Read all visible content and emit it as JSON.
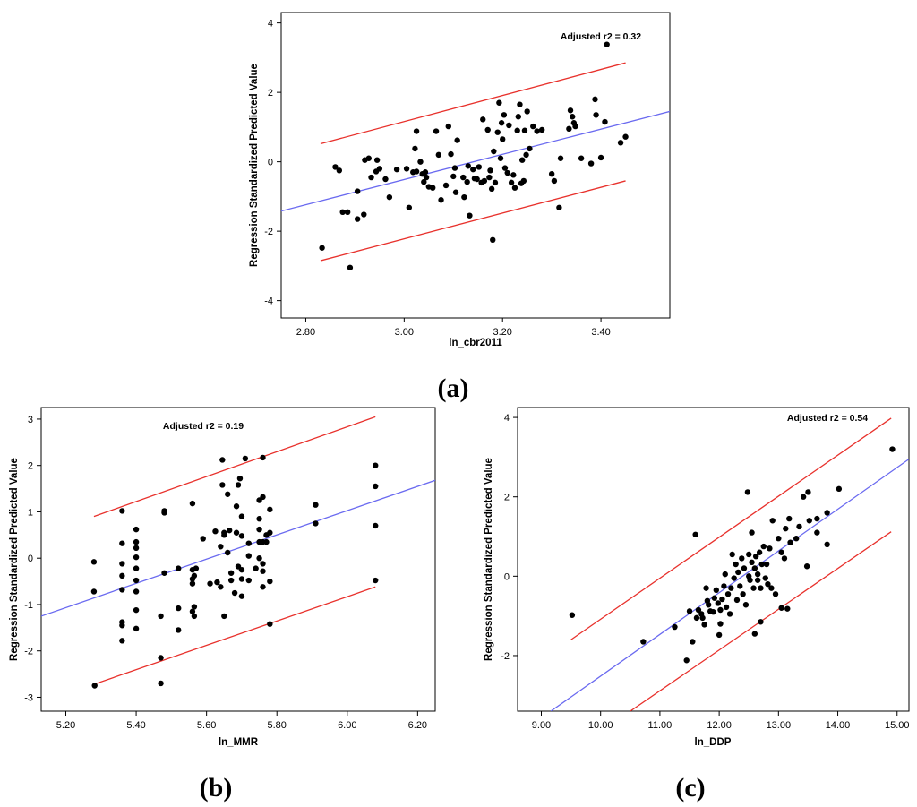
{
  "chart_data": [
    {
      "id": "a",
      "type": "scatter",
      "panel_label": "(a)",
      "xlabel": "ln_cbr2011",
      "ylabel": "Regression Standardized Predicted Value",
      "annotation": "Adjusted r2 = 0.32",
      "xlim": [
        2.75,
        3.54
      ],
      "ylim": [
        -4.5,
        4.3
      ],
      "xticks": [
        2.8,
        3.0,
        3.2,
        3.4
      ],
      "xtick_labels": [
        "2.80",
        "3.00",
        "3.20",
        "3.40"
      ],
      "yticks": [
        -4,
        -2,
        0,
        2,
        4
      ],
      "ytick_labels": [
        "-4",
        "-2",
        "0",
        "2",
        "4"
      ],
      "fit_line": {
        "x": [
          2.75,
          3.54
        ],
        "y": [
          -1.42,
          1.45
        ],
        "color": "#6a6af0"
      },
      "upper_band": {
        "x": [
          2.83,
          3.45
        ],
        "y": [
          0.52,
          2.85
        ],
        "color": "#e8312c"
      },
      "lower_band": {
        "x": [
          2.83,
          3.45
        ],
        "y": [
          -2.85,
          -0.55
        ],
        "color": "#e8312c"
      },
      "points": [
        [
          2.833,
          -2.48
        ],
        [
          2.86,
          -0.15
        ],
        [
          2.868,
          -0.25
        ],
        [
          2.875,
          -1.45
        ],
        [
          2.885,
          -1.45
        ],
        [
          2.89,
          -3.05
        ],
        [
          2.905,
          -0.85
        ],
        [
          2.905,
          -1.65
        ],
        [
          2.918,
          -1.52
        ],
        [
          2.92,
          0.05
        ],
        [
          2.928,
          0.1
        ],
        [
          2.933,
          -0.45
        ],
        [
          2.943,
          -0.28
        ],
        [
          2.945,
          0.05
        ],
        [
          2.95,
          -0.2
        ],
        [
          2.962,
          -0.5
        ],
        [
          2.97,
          -1.02
        ],
        [
          2.985,
          -0.22
        ],
        [
          3.005,
          -0.2
        ],
        [
          3.01,
          -1.32
        ],
        [
          3.018,
          -0.3
        ],
        [
          3.022,
          0.38
        ],
        [
          3.025,
          0.88
        ],
        [
          3.025,
          -0.28
        ],
        [
          3.033,
          0.0
        ],
        [
          3.037,
          -0.35
        ],
        [
          3.04,
          -0.58
        ],
        [
          3.043,
          -0.3
        ],
        [
          3.045,
          -0.45
        ],
        [
          3.05,
          -0.72
        ],
        [
          3.058,
          -0.75
        ],
        [
          3.065,
          0.88
        ],
        [
          3.07,
          0.2
        ],
        [
          3.075,
          -1.1
        ],
        [
          3.085,
          -0.68
        ],
        [
          3.09,
          1.02
        ],
        [
          3.095,
          0.22
        ],
        [
          3.1,
          -0.42
        ],
        [
          3.103,
          -0.18
        ],
        [
          3.105,
          -0.88
        ],
        [
          3.108,
          0.62
        ],
        [
          3.12,
          -0.45
        ],
        [
          3.122,
          -1.02
        ],
        [
          3.128,
          -0.58
        ],
        [
          3.13,
          -0.12
        ],
        [
          3.133,
          -1.55
        ],
        [
          3.14,
          -0.22
        ],
        [
          3.143,
          -0.48
        ],
        [
          3.148,
          -0.5
        ],
        [
          3.152,
          -0.15
        ],
        [
          3.157,
          -0.6
        ],
        [
          3.16,
          1.22
        ],
        [
          3.163,
          -0.55
        ],
        [
          3.17,
          0.92
        ],
        [
          3.173,
          -0.45
        ],
        [
          3.175,
          -0.25
        ],
        [
          3.178,
          -0.78
        ],
        [
          3.18,
          -2.25
        ],
        [
          3.182,
          0.3
        ],
        [
          3.185,
          -0.6
        ],
        [
          3.19,
          0.85
        ],
        [
          3.193,
          1.7
        ],
        [
          3.196,
          0.1
        ],
        [
          3.198,
          1.12
        ],
        [
          3.2,
          0.65
        ],
        [
          3.203,
          1.35
        ],
        [
          3.205,
          -0.18
        ],
        [
          3.21,
          -0.32
        ],
        [
          3.213,
          1.05
        ],
        [
          3.218,
          -0.6
        ],
        [
          3.222,
          -0.38
        ],
        [
          3.225,
          -0.75
        ],
        [
          3.23,
          0.9
        ],
        [
          3.232,
          1.3
        ],
        [
          3.235,
          1.65
        ],
        [
          3.238,
          -0.62
        ],
        [
          3.24,
          0.05
        ],
        [
          3.243,
          -0.55
        ],
        [
          3.245,
          0.9
        ],
        [
          3.248,
          0.2
        ],
        [
          3.25,
          1.45
        ],
        [
          3.255,
          0.38
        ],
        [
          3.262,
          1.02
        ],
        [
          3.27,
          0.88
        ],
        [
          3.28,
          0.92
        ],
        [
          3.3,
          -0.35
        ],
        [
          3.305,
          -0.55
        ],
        [
          3.315,
          -1.32
        ],
        [
          3.318,
          0.1
        ],
        [
          3.335,
          0.95
        ],
        [
          3.338,
          1.48
        ],
        [
          3.342,
          1.3
        ],
        [
          3.345,
          1.12
        ],
        [
          3.348,
          1.02
        ],
        [
          3.36,
          0.1
        ],
        [
          3.38,
          -0.05
        ],
        [
          3.388,
          1.8
        ],
        [
          3.39,
          1.35
        ],
        [
          3.4,
          0.12
        ],
        [
          3.408,
          1.15
        ],
        [
          3.412,
          3.38
        ],
        [
          3.44,
          0.55
        ],
        [
          3.45,
          0.72
        ]
      ]
    },
    {
      "id": "b",
      "type": "scatter",
      "panel_label": "(b)",
      "xlabel": "ln_MMR",
      "ylabel": "Regression Standardized Predicted Value",
      "annotation": "Adjusted r2 = 0.19",
      "xlim": [
        5.13,
        6.25
      ],
      "ylim": [
        -3.3,
        3.25
      ],
      "xticks": [
        5.2,
        5.4,
        5.6,
        5.8,
        6.0,
        6.2
      ],
      "xtick_labels": [
        "5.20",
        "5.40",
        "5.60",
        "5.80",
        "6.00",
        "6.20"
      ],
      "yticks": [
        -3,
        -2,
        -1,
        0,
        1,
        2,
        3
      ],
      "ytick_labels": [
        "-3",
        "-2",
        "-1",
        "0",
        "1",
        "2",
        "3"
      ],
      "fit_line": {
        "x": [
          5.13,
          6.25
        ],
        "y": [
          -1.25,
          1.68
        ],
        "color": "#6a6af0"
      },
      "upper_band": {
        "x": [
          5.28,
          6.08
        ],
        "y": [
          0.9,
          3.05
        ],
        "color": "#e8312c"
      },
      "lower_band": {
        "x": [
          5.28,
          6.08
        ],
        "y": [
          -2.72,
          -0.62
        ],
        "color": "#e8312c"
      },
      "points": [
        [
          5.28,
          -0.08
        ],
        [
          5.28,
          -0.72
        ],
        [
          5.282,
          -2.75
        ],
        [
          5.36,
          1.02
        ],
        [
          5.36,
          0.32
        ],
        [
          5.36,
          -0.12
        ],
        [
          5.36,
          -0.38
        ],
        [
          5.36,
          -0.68
        ],
        [
          5.36,
          -1.38
        ],
        [
          5.36,
          -1.45
        ],
        [
          5.36,
          -1.78
        ],
        [
          5.4,
          0.62
        ],
        [
          5.4,
          0.35
        ],
        [
          5.4,
          0.22
        ],
        [
          5.4,
          0.02
        ],
        [
          5.4,
          -0.22
        ],
        [
          5.4,
          -0.48
        ],
        [
          5.4,
          -0.72
        ],
        [
          5.4,
          -1.12
        ],
        [
          5.4,
          -1.52
        ],
        [
          5.47,
          -2.15
        ],
        [
          5.47,
          -2.7
        ],
        [
          5.47,
          -1.25
        ],
        [
          5.48,
          1.02
        ],
        [
          5.48,
          0.98
        ],
        [
          5.48,
          -0.32
        ],
        [
          5.52,
          -0.22
        ],
        [
          5.52,
          -1.08
        ],
        [
          5.52,
          -1.55
        ],
        [
          5.56,
          1.18
        ],
        [
          5.56,
          -0.25
        ],
        [
          5.56,
          -0.45
        ],
        [
          5.56,
          -0.55
        ],
        [
          5.56,
          -1.15
        ],
        [
          5.565,
          -1.25
        ],
        [
          5.565,
          -1.05
        ],
        [
          5.565,
          -0.38
        ],
        [
          5.57,
          -0.22
        ],
        [
          5.59,
          0.42
        ],
        [
          5.61,
          -0.55
        ],
        [
          5.625,
          0.58
        ],
        [
          5.63,
          -0.52
        ],
        [
          5.64,
          0.25
        ],
        [
          5.64,
          -0.62
        ],
        [
          5.645,
          2.12
        ],
        [
          5.645,
          1.58
        ],
        [
          5.65,
          0.55
        ],
        [
          5.65,
          0.5
        ],
        [
          5.65,
          -1.25
        ],
        [
          5.66,
          1.38
        ],
        [
          5.66,
          0.12
        ],
        [
          5.665,
          0.6
        ],
        [
          5.67,
          -0.32
        ],
        [
          5.67,
          -0.48
        ],
        [
          5.68,
          -0.75
        ],
        [
          5.685,
          1.12
        ],
        [
          5.685,
          0.55
        ],
        [
          5.69,
          1.58
        ],
        [
          5.69,
          -0.18
        ],
        [
          5.695,
          1.72
        ],
        [
          5.7,
          0.9
        ],
        [
          5.7,
          0.48
        ],
        [
          5.7,
          -0.25
        ],
        [
          5.7,
          -0.45
        ],
        [
          5.7,
          -0.82
        ],
        [
          5.71,
          2.15
        ],
        [
          5.72,
          0.32
        ],
        [
          5.72,
          0.05
        ],
        [
          5.72,
          -0.48
        ],
        [
          5.74,
          -0.22
        ],
        [
          5.75,
          1.25
        ],
        [
          5.75,
          0.85
        ],
        [
          5.75,
          0.62
        ],
        [
          5.75,
          0.35
        ],
        [
          5.75,
          0.0
        ],
        [
          5.76,
          2.17
        ],
        [
          5.76,
          1.32
        ],
        [
          5.76,
          0.35
        ],
        [
          5.76,
          -0.12
        ],
        [
          5.76,
          -0.28
        ],
        [
          5.76,
          -0.62
        ],
        [
          5.77,
          0.5
        ],
        [
          5.77,
          0.35
        ],
        [
          5.78,
          1.05
        ],
        [
          5.78,
          0.55
        ],
        [
          5.78,
          -0.5
        ],
        [
          5.78,
          -1.42
        ],
        [
          5.91,
          1.15
        ],
        [
          5.91,
          0.75
        ],
        [
          6.08,
          2.0
        ],
        [
          6.08,
          1.55
        ],
        [
          6.08,
          0.7
        ],
        [
          6.08,
          -0.48
        ]
      ]
    },
    {
      "id": "c",
      "type": "scatter",
      "panel_label": "(c)",
      "xlabel": "ln_DDP",
      "ylabel": "Regression Standardized Predicted Value",
      "annotation": "Adjusted r2 = 0.54",
      "xlim": [
        8.6,
        15.2
      ],
      "ylim": [
        -3.4,
        4.25
      ],
      "xticks": [
        9,
        10,
        11,
        12,
        13,
        14,
        15
      ],
      "xtick_labels": [
        "9.00",
        "10.00",
        "11.00",
        "12.00",
        "13.00",
        "14.00",
        "15.00"
      ],
      "yticks": [
        -2,
        0,
        2,
        4
      ],
      "ytick_labels": [
        "-2",
        "0",
        "2",
        "4"
      ],
      "fit_line": {
        "x": [
          9.16,
          15.2
        ],
        "y": [
          -3.4,
          2.95
        ],
        "color": "#6a6af0"
      },
      "upper_band": {
        "x": [
          9.5,
          14.9
        ],
        "y": [
          -1.6,
          3.98
        ],
        "color": "#e8312c"
      },
      "lower_band": {
        "x": [
          10.5,
          14.9
        ],
        "y": [
          -3.4,
          1.12
        ],
        "color": "#e8312c"
      },
      "points": [
        [
          9.52,
          -0.98
        ],
        [
          10.72,
          -1.65
        ],
        [
          11.25,
          -1.28
        ],
        [
          11.45,
          -2.12
        ],
        [
          11.5,
          -0.88
        ],
        [
          11.55,
          -1.65
        ],
        [
          11.6,
          1.05
        ],
        [
          11.62,
          -1.05
        ],
        [
          11.65,
          -0.85
        ],
        [
          11.7,
          -0.95
        ],
        [
          11.72,
          -1.05
        ],
        [
          11.75,
          -1.22
        ],
        [
          11.78,
          -0.3
        ],
        [
          11.8,
          -0.62
        ],
        [
          11.82,
          -0.72
        ],
        [
          11.85,
          -0.88
        ],
        [
          11.9,
          -0.9
        ],
        [
          11.92,
          -0.55
        ],
        [
          11.95,
          -0.35
        ],
        [
          11.98,
          -0.68
        ],
        [
          12.0,
          -1.48
        ],
        [
          12.02,
          -1.2
        ],
        [
          12.02,
          -0.85
        ],
        [
          12.05,
          -0.58
        ],
        [
          12.08,
          -0.25
        ],
        [
          12.1,
          0.05
        ],
        [
          12.12,
          -0.78
        ],
        [
          12.15,
          -0.45
        ],
        [
          12.18,
          -0.95
        ],
        [
          12.2,
          -0.3
        ],
        [
          12.22,
          0.55
        ],
        [
          12.25,
          -0.05
        ],
        [
          12.28,
          0.3
        ],
        [
          12.3,
          -0.6
        ],
        [
          12.32,
          0.1
        ],
        [
          12.35,
          -0.25
        ],
        [
          12.38,
          0.45
        ],
        [
          12.4,
          -0.45
        ],
        [
          12.42,
          0.2
        ],
        [
          12.45,
          -0.72
        ],
        [
          12.48,
          2.12
        ],
        [
          12.5,
          0.55
        ],
        [
          12.5,
          0.0
        ],
        [
          12.52,
          -0.1
        ],
        [
          12.55,
          0.35
        ],
        [
          12.55,
          1.1
        ],
        [
          12.58,
          -0.3
        ],
        [
          12.6,
          0.2
        ],
        [
          12.6,
          -1.45
        ],
        [
          12.62,
          0.5
        ],
        [
          12.65,
          0.05
        ],
        [
          12.65,
          -0.1
        ],
        [
          12.68,
          0.6
        ],
        [
          12.7,
          -0.3
        ],
        [
          12.7,
          -1.15
        ],
        [
          12.72,
          0.3
        ],
        [
          12.75,
          0.75
        ],
        [
          12.78,
          -0.05
        ],
        [
          12.8,
          0.3
        ],
        [
          12.82,
          -0.2
        ],
        [
          12.85,
          0.7
        ],
        [
          12.88,
          -0.3
        ],
        [
          12.9,
          1.4
        ],
        [
          12.95,
          -0.45
        ],
        [
          13.0,
          0.95
        ],
        [
          13.05,
          0.6
        ],
        [
          13.05,
          -0.8
        ],
        [
          13.1,
          0.45
        ],
        [
          13.12,
          1.2
        ],
        [
          13.15,
          -0.82
        ],
        [
          13.18,
          1.45
        ],
        [
          13.2,
          0.85
        ],
        [
          13.3,
          0.95
        ],
        [
          13.35,
          1.25
        ],
        [
          13.42,
          2.0
        ],
        [
          13.48,
          0.25
        ],
        [
          13.5,
          2.12
        ],
        [
          13.52,
          1.4
        ],
        [
          13.65,
          1.45
        ],
        [
          13.65,
          1.1
        ],
        [
          13.82,
          1.6
        ],
        [
          13.82,
          0.8
        ],
        [
          14.02,
          2.2
        ],
        [
          14.92,
          3.2
        ]
      ]
    }
  ]
}
